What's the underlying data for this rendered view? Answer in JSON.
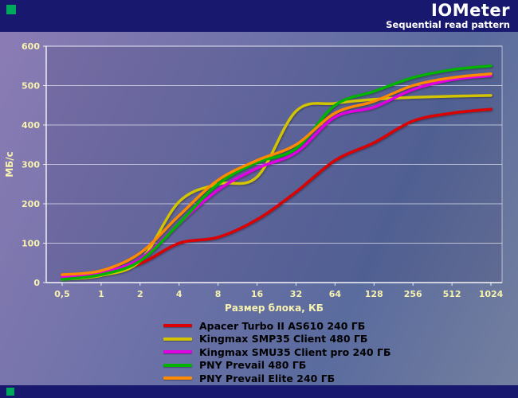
{
  "header": {
    "title": "IOMeter",
    "subtitle": "Sequential read pattern"
  },
  "chart_data": {
    "type": "line",
    "title": "IOMeter — Sequential read pattern",
    "xlabel": "Размер блока, КБ",
    "ylabel": "МБ/с",
    "x_categories": [
      "0,5",
      "1",
      "2",
      "4",
      "8",
      "16",
      "32",
      "64",
      "128",
      "256",
      "512",
      "1024"
    ],
    "ylim": [
      0,
      600
    ],
    "ytick_step": 100,
    "grid": "horizontal",
    "legend_position": "bottom",
    "series": [
      {
        "name": "Apacer Turbo II AS610 240 ГБ",
        "color": "#dd0000",
        "values": [
          20,
          25,
          48,
          100,
          115,
          160,
          230,
          310,
          355,
          410,
          430,
          440
        ]
      },
      {
        "name": "Kingmax SMP35 Client 480 ГБ",
        "color": "#d2c400",
        "values": [
          8,
          18,
          55,
          205,
          250,
          268,
          435,
          455,
          465,
          470,
          473,
          475
        ]
      },
      {
        "name": "Kingmax SMU35 Client pro 240 ГБ",
        "color": "#e100e1",
        "values": [
          15,
          25,
          60,
          150,
          235,
          290,
          330,
          420,
          445,
          490,
          515,
          525
        ]
      },
      {
        "name": "PNY Prevail 480 ГБ",
        "color": "#00b400",
        "values": [
          8,
          20,
          55,
          150,
          250,
          305,
          340,
          450,
          485,
          520,
          540,
          550
        ]
      },
      {
        "name": "PNY Prevail Elite 240 ГБ",
        "color": "#ff8a00",
        "values": [
          20,
          30,
          75,
          170,
          260,
          310,
          350,
          430,
          460,
          500,
          520,
          530
        ]
      }
    ]
  }
}
